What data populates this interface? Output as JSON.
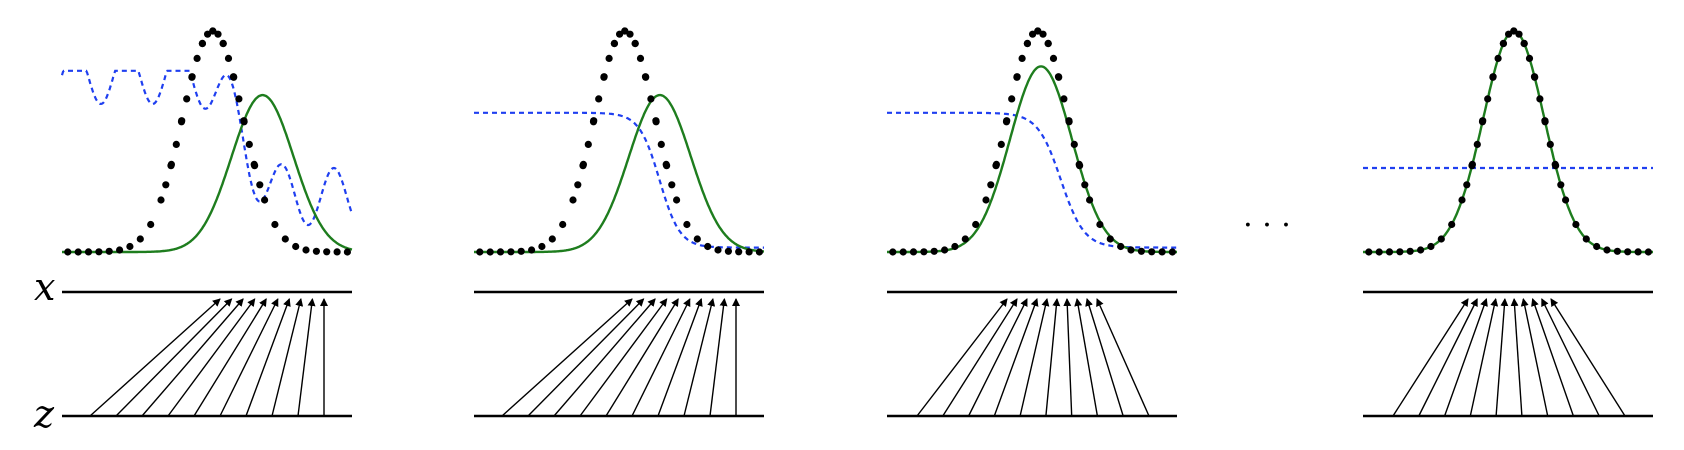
{
  "labels": {
    "x_axis": "x",
    "z_axis": "z",
    "ellipsis": "· · ·"
  },
  "colors": {
    "target": "#000000",
    "model": "#1e7d1e",
    "discriminator": "#1f3ff0",
    "axis": "#000000",
    "mapping": "#000000"
  },
  "panels": [
    {
      "name": "panel-1",
      "model_shift": 0.78,
      "disc": "wave",
      "disc_level": 0.28,
      "arrows": "left-converge"
    },
    {
      "name": "panel-2",
      "model_shift": 0.55,
      "disc": "step",
      "disc_level": 0.28,
      "arrows": "left-converge"
    },
    {
      "name": "panel-3",
      "model_shift": 0.05,
      "disc": "step-soft",
      "disc_level": 0.28,
      "arrows": "mid-converge"
    },
    {
      "name": "panel-4",
      "model_shift": 0.0,
      "disc": "flat",
      "disc_level": 0.5,
      "arrows": "center-converge"
    }
  ]
}
